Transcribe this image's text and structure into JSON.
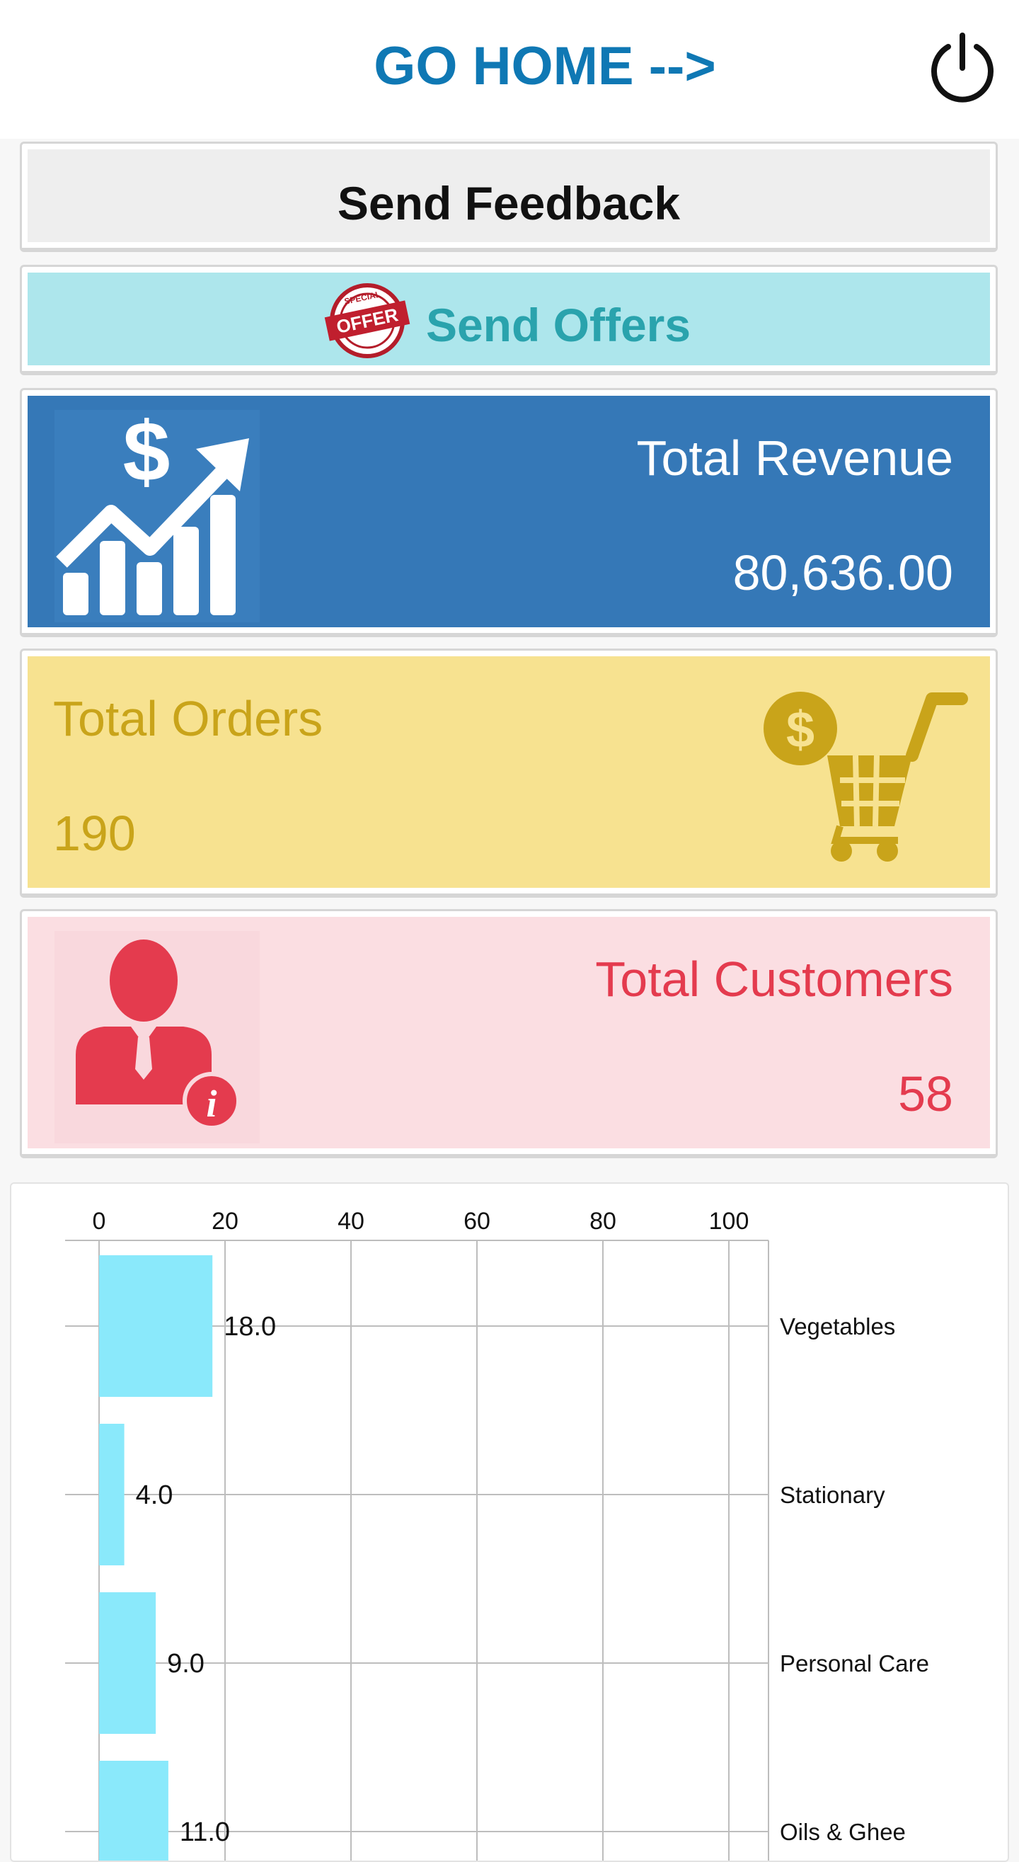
{
  "header": {
    "go_home_label": "GO HOME -->",
    "power_icon": "power-icon"
  },
  "buttons": {
    "send_feedback": "Send Feedback",
    "send_offers": "Send Offers",
    "offer_badge_text": "OFFER",
    "offer_badge_ring": "SPECIAL"
  },
  "stats": {
    "revenue": {
      "label": "Total Revenue",
      "value": "80,636.00",
      "icon": "revenue-growth-icon"
    },
    "orders": {
      "label": "Total Orders",
      "value": "190",
      "icon": "shopping-cart-icon"
    },
    "customers": {
      "label": "Total Customers",
      "value": "58",
      "icon": "customer-info-icon"
    }
  },
  "colors": {
    "brand_blue": "#0f78b4",
    "revenue_bg": "#3578b7",
    "orders_bg": "#f7e290",
    "orders_fg": "#c9a41a",
    "customers_bg": "#fbdee2",
    "customers_fg": "#e43b4e",
    "offers_bg": "#ade6ec",
    "offers_fg": "#2aa3ad",
    "bar": "#8ae9fb"
  },
  "chart_data": {
    "type": "bar",
    "orientation": "horizontal",
    "categories": [
      "Vegetables",
      "Stationary",
      "Personal Care",
      "Oils & Ghee"
    ],
    "values": [
      18.0,
      4.0,
      9.0,
      11.0
    ],
    "value_labels": [
      "18.0",
      "4.0",
      "9.0",
      "11.0"
    ],
    "xlim": [
      0,
      105
    ],
    "xticks": [
      0,
      20,
      40,
      60,
      80,
      100
    ],
    "x_axis_position": "top",
    "category_labels_position": "right",
    "grid": true,
    "legend": "none"
  }
}
